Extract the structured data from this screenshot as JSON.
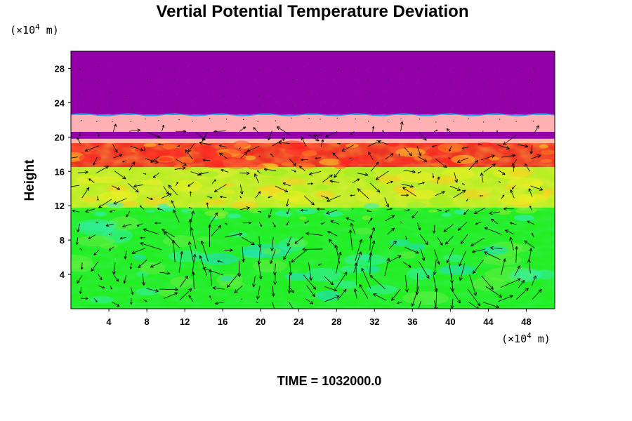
{
  "chart_data": {
    "type": "heatmap",
    "title": "Vertial Potential Temperature Deviation",
    "ylabel": "Height",
    "xlabel": "",
    "x_unit_label": {
      "base": "(×10",
      "exp": "4",
      "rest": " m)"
    },
    "y_unit_label": {
      "base": "(×10",
      "exp": "4",
      "rest": " m)"
    },
    "xlim": [
      0,
      51
    ],
    "ylim": [
      0,
      30
    ],
    "xticks": [
      4,
      8,
      12,
      16,
      20,
      24,
      28,
      32,
      36,
      40,
      44,
      48
    ],
    "yticks": [
      4,
      8,
      12,
      16,
      20,
      24,
      28
    ],
    "time_label": "TIME = 1032000.0",
    "layers": [
      {
        "y0": 0,
        "y1": 11.8,
        "level": "near-zero",
        "color": "#22ee22"
      },
      {
        "y0": 11.8,
        "y1": 16.5,
        "level": "weak-positive",
        "color": "#b8ee22"
      },
      {
        "y0": 16.5,
        "y1": 19.3,
        "level": "strong-positive",
        "color": "#ee3322"
      },
      {
        "y0": 19.3,
        "y1": 19.8,
        "level": "pink",
        "color": "#ffb0b0"
      },
      {
        "y0": 19.8,
        "y1": 20.6,
        "level": "max",
        "color": "#9400a8"
      },
      {
        "y0": 20.6,
        "y1": 22.6,
        "level": "pink",
        "color": "#ffb0b0"
      },
      {
        "y0": 22.6,
        "y1": 30,
        "level": "max",
        "color": "#9400a8"
      }
    ],
    "vector_field": "wind arrows overlaid",
    "grid": false,
    "legend": "none"
  }
}
